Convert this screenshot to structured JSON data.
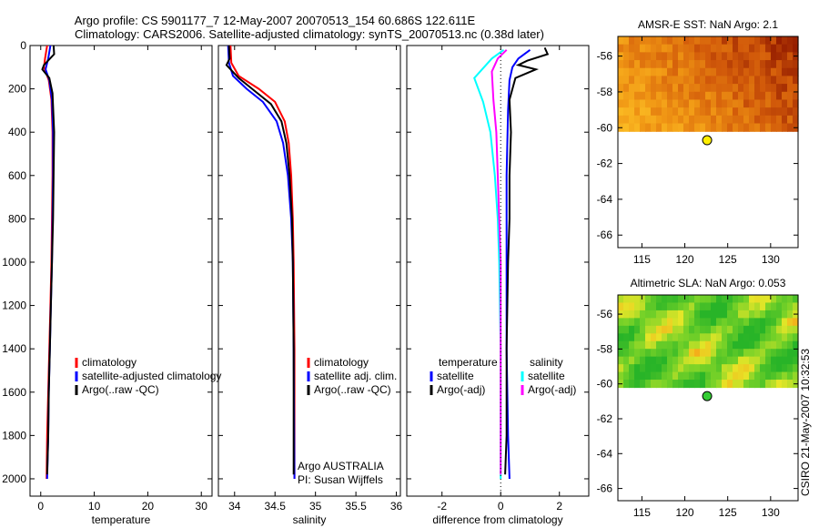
{
  "figure": {
    "title_line1": "Argo profile: CS 5901177_7 12-May-2007 20070513_154 60.686S 122.611E",
    "title_line2": "Climatology: CARS2006. Satellite-adjusted climatology: synTS_20070513.nc (0.38d later)",
    "side_stamp": "CSIRO 21-May-2007 10:32:53"
  },
  "colors": {
    "climatology": "#ff0000",
    "satellite": "#0000ff",
    "argo": "#000000",
    "salinity_satellite": "#00ffff",
    "salinity_argo": "#ff00ff",
    "float_marker_sst": "#ffee00",
    "float_marker_sla": "#33cc33"
  },
  "chart_data": [
    {
      "id": "temperature",
      "type": "line",
      "xlabel": "temperature",
      "ylabel": "",
      "xlim": [
        -2,
        32
      ],
      "ylim": [
        2080,
        0
      ],
      "xticks": [
        0,
        10,
        20,
        30
      ],
      "xticklabels": [
        "0",
        "10",
        "20",
        "30"
      ],
      "yticks": [
        0,
        200,
        400,
        600,
        800,
        1000,
        1200,
        1400,
        1600,
        1800,
        2000
      ],
      "yticklabels": [
        "0",
        "200",
        "400",
        "600",
        "800",
        "1000",
        "1200",
        "1400",
        "1600",
        "1800",
        "2000"
      ],
      "legend": [
        "climatology",
        "satellite-adjusted climatology",
        "Argo(..raw -QC)"
      ],
      "series": [
        {
          "name": "climatology",
          "color": "climatology",
          "points": [
            [
              1.2,
              0
            ],
            [
              0.8,
              60
            ],
            [
              0.6,
              100
            ],
            [
              1.5,
              160
            ],
            [
              2.0,
              250
            ],
            [
              2.2,
              400
            ],
            [
              2.2,
              600
            ],
            [
              2.1,
              800
            ],
            [
              2.0,
              1000
            ],
            [
              1.8,
              1200
            ],
            [
              1.6,
              1400
            ],
            [
              1.4,
              1600
            ],
            [
              1.2,
              1800
            ],
            [
              1.1,
              2000
            ]
          ]
        },
        {
          "name": "satellite-adjusted climatology",
          "color": "satellite",
          "points": [
            [
              1.8,
              0
            ],
            [
              1.4,
              60
            ],
            [
              0.9,
              110
            ],
            [
              1.6,
              160
            ],
            [
              2.1,
              250
            ],
            [
              2.3,
              400
            ],
            [
              2.3,
              600
            ],
            [
              2.2,
              800
            ],
            [
              2.1,
              1000
            ],
            [
              1.9,
              1200
            ],
            [
              1.7,
              1400
            ],
            [
              1.5,
              1600
            ],
            [
              1.4,
              1800
            ],
            [
              1.2,
              2000
            ]
          ]
        },
        {
          "name": "Argo(..raw -QC)",
          "color": "argo",
          "points": [
            [
              2.4,
              0
            ],
            [
              2.5,
              40
            ],
            [
              0.6,
              90
            ],
            [
              0.3,
              110
            ],
            [
              1.6,
              150
            ],
            [
              2.2,
              220
            ],
            [
              2.5,
              400
            ],
            [
              2.4,
              600
            ],
            [
              2.3,
              800
            ],
            [
              2.1,
              1000
            ],
            [
              1.9,
              1200
            ],
            [
              1.7,
              1400
            ],
            [
              1.5,
              1600
            ],
            [
              1.4,
              1800
            ],
            [
              1.2,
              1980
            ]
          ]
        }
      ]
    },
    {
      "id": "salinity",
      "type": "line",
      "xlabel": "salinity",
      "ylabel": "",
      "xlim": [
        33.8,
        36.05
      ],
      "ylim": [
        2080,
        0
      ],
      "xticks": [
        34,
        34.5,
        35,
        35.5,
        36
      ],
      "xticklabels": [
        "34",
        "34.5",
        "35",
        "35.5",
        "36"
      ],
      "legend": [
        "climatology",
        "satellite adj. clim.",
        "Argo(..raw -QC)"
      ],
      "annotation_lines": [
        "Argo AUSTRALIA",
        "PI: Susan Wijffels"
      ],
      "series": [
        {
          "name": "climatology",
          "color": "climatology",
          "points": [
            [
              33.95,
              0
            ],
            [
              33.96,
              80
            ],
            [
              34.05,
              140
            ],
            [
              34.3,
              200
            ],
            [
              34.5,
              260
            ],
            [
              34.62,
              350
            ],
            [
              34.67,
              450
            ],
            [
              34.7,
              600
            ],
            [
              34.72,
              800
            ],
            [
              34.73,
              1000
            ],
            [
              34.74,
              1400
            ],
            [
              34.74,
              2000
            ]
          ]
        },
        {
          "name": "satellite adj. clim.",
          "color": "satellite",
          "points": [
            [
              33.92,
              0
            ],
            [
              33.93,
              80
            ],
            [
              33.98,
              140
            ],
            [
              34.15,
              200
            ],
            [
              34.35,
              260
            ],
            [
              34.52,
              350
            ],
            [
              34.6,
              450
            ],
            [
              34.66,
              600
            ],
            [
              34.7,
              800
            ],
            [
              34.72,
              1000
            ],
            [
              34.73,
              1400
            ],
            [
              34.74,
              2000
            ]
          ]
        },
        {
          "name": "Argo(..raw -QC)",
          "color": "argo",
          "points": [
            [
              33.93,
              0
            ],
            [
              33.94,
              60
            ],
            [
              33.9,
              90
            ],
            [
              34.05,
              150
            ],
            [
              34.25,
              210
            ],
            [
              34.45,
              270
            ],
            [
              34.58,
              350
            ],
            [
              34.64,
              450
            ],
            [
              34.68,
              600
            ],
            [
              34.71,
              800
            ],
            [
              34.72,
              1000
            ],
            [
              34.73,
              1400
            ],
            [
              34.73,
              1980
            ]
          ]
        }
      ]
    },
    {
      "id": "difference",
      "type": "line",
      "xlabel": "difference from climatology",
      "ylabel": "",
      "xlim": [
        -3.2,
        3.0
      ],
      "ylim": [
        2080,
        0
      ],
      "xticks": [
        -2,
        0,
        2
      ],
      "xticklabels": [
        "-2",
        "0",
        "2"
      ],
      "legend_groups": [
        {
          "header": "temperature",
          "items": [
            "satellite",
            "Argo(-adj)"
          ]
        },
        {
          "header": "salinity",
          "items": [
            "satellite",
            "Argo(-adj)"
          ]
        }
      ],
      "series": [
        {
          "name": "temperature satellite",
          "color": "satellite",
          "points": [
            [
              1.0,
              20
            ],
            [
              0.6,
              60
            ],
            [
              0.4,
              100
            ],
            [
              0.3,
              160
            ],
            [
              0.25,
              300
            ],
            [
              0.2,
              600
            ],
            [
              0.2,
              1000
            ],
            [
              0.2,
              1400
            ],
            [
              0.25,
              1800
            ],
            [
              0.3,
              2000
            ]
          ]
        },
        {
          "name": "temperature Argo(-adj)",
          "color": "argo",
          "points": [
            [
              1.5,
              10
            ],
            [
              1.6,
              40
            ],
            [
              0.9,
              70
            ],
            [
              0.6,
              90
            ],
            [
              1.2,
              110
            ],
            [
              0.5,
              150
            ],
            [
              0.3,
              250
            ],
            [
              0.35,
              400
            ],
            [
              0.3,
              600
            ],
            [
              0.3,
              800
            ],
            [
              0.25,
              1000
            ],
            [
              0.2,
              1400
            ],
            [
              0.2,
              1800
            ],
            [
              0.15,
              1980
            ]
          ]
        },
        {
          "name": "salinity satellite",
          "color": "salinity_satellite",
          "points": [
            [
              0.1,
              20
            ],
            [
              -0.3,
              60
            ],
            [
              -0.9,
              150
            ],
            [
              -0.6,
              260
            ],
            [
              -0.35,
              400
            ],
            [
              -0.2,
              600
            ],
            [
              -0.1,
              800
            ],
            [
              -0.05,
              1000
            ],
            [
              0,
              1400
            ],
            [
              0,
              2000
            ]
          ]
        },
        {
          "name": "salinity Argo(-adj)",
          "color": "salinity_argo",
          "points": [
            [
              0.2,
              20
            ],
            [
              -0.1,
              60
            ],
            [
              -0.3,
              120
            ],
            [
              -0.25,
              250
            ],
            [
              -0.15,
              400
            ],
            [
              -0.1,
              600
            ],
            [
              -0.05,
              800
            ],
            [
              0,
              1000
            ],
            [
              0,
              1400
            ],
            [
              0,
              1980
            ]
          ]
        }
      ]
    },
    {
      "id": "amsre_sst_map",
      "type": "heatmap",
      "title": "AMSR-E SST: NaN Argo: 2.1",
      "xlim": [
        112.2,
        133.2
      ],
      "ylim": [
        -66.7,
        -54.9
      ],
      "data_lat_range": [
        -60.2,
        -54.9
      ],
      "xticks": [
        115,
        120,
        125,
        130
      ],
      "xticklabels": [
        "115",
        "120",
        "125",
        "130"
      ],
      "yticks": [
        -56,
        -58,
        -60,
        -62,
        -64,
        -66
      ],
      "yticklabels": [
        "-56",
        "-58",
        "-60",
        "-62",
        "-64",
        "-66"
      ],
      "float_position": {
        "lon": 122.6,
        "lat": -60.7
      }
    },
    {
      "id": "altimetric_sla_map",
      "type": "heatmap",
      "title": "Altimetric SLA: NaN Argo: 0.053",
      "xlim": [
        112.2,
        133.2
      ],
      "ylim": [
        -66.7,
        -54.9
      ],
      "data_lat_range": [
        -60.2,
        -54.9
      ],
      "xticks": [
        115,
        120,
        125,
        130
      ],
      "xticklabels": [
        "115",
        "120",
        "125",
        "130"
      ],
      "yticks": [
        -56,
        -58,
        -60,
        -62,
        -64,
        -66
      ],
      "yticklabels": [
        "-56",
        "-58",
        "-60",
        "-62",
        "-64",
        "-66"
      ],
      "float_position": {
        "lon": 122.6,
        "lat": -60.7
      }
    }
  ]
}
